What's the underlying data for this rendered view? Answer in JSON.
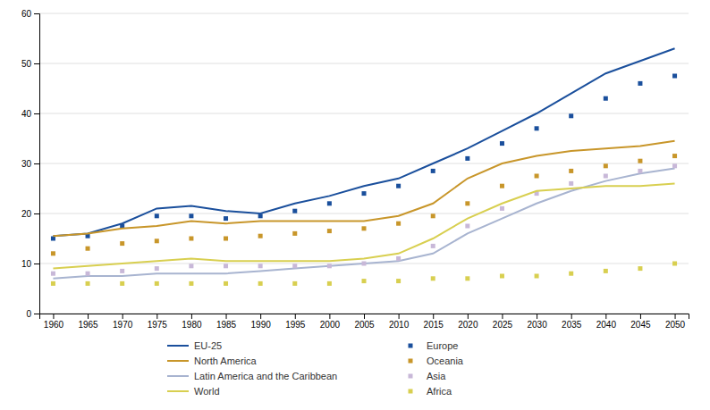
{
  "chart_data": {
    "type": "line",
    "x": [
      1960,
      1965,
      1970,
      1975,
      1980,
      1985,
      1990,
      1995,
      2000,
      2005,
      2010,
      2015,
      2020,
      2025,
      2030,
      2035,
      2040,
      2045,
      2050
    ],
    "series": [
      {
        "name": "EU-25",
        "color": "#1a4f9c",
        "line_style": "solid",
        "values": [
          15.5,
          16.0,
          18.0,
          21.0,
          21.5,
          20.5,
          20.0,
          22.0,
          23.5,
          25.5,
          27.0,
          30.0,
          33.0,
          36.5,
          40.0,
          44.0,
          48.0,
          50.5,
          53.0
        ]
      },
      {
        "name": "Europe",
        "color": "#1a4f9c",
        "marker": "square",
        "line_style": "none",
        "values": [
          15.0,
          15.5,
          17.5,
          19.5,
          19.5,
          19.0,
          19.5,
          20.5,
          22.0,
          24.0,
          25.5,
          28.5,
          31.0,
          34.0,
          37.0,
          39.5,
          43.0,
          46.0,
          47.5
        ]
      },
      {
        "name": "North America",
        "color": "#c8962a",
        "line_style": "solid",
        "values": [
          15.5,
          16.0,
          17.0,
          17.5,
          18.5,
          18.0,
          18.5,
          18.5,
          18.5,
          18.5,
          19.5,
          22.0,
          27.0,
          30.0,
          31.5,
          32.5,
          33.0,
          33.5,
          34.5
        ]
      },
      {
        "name": "Oceania",
        "color": "#c8962a",
        "marker": "square",
        "line_style": "none",
        "values": [
          12.0,
          13.0,
          14.0,
          14.5,
          15.0,
          15.0,
          15.5,
          16.0,
          16.5,
          17.0,
          18.0,
          19.5,
          22.0,
          25.5,
          27.5,
          28.5,
          29.5,
          30.5,
          31.5
        ]
      },
      {
        "name": "Latin America and the Caribbean",
        "color": "#a8b4d0",
        "line_style": "solid",
        "values": [
          7.0,
          7.5,
          7.5,
          8.0,
          8.0,
          8.0,
          8.5,
          9.0,
          9.5,
          10.0,
          10.5,
          12.0,
          16.0,
          19.0,
          22.0,
          24.5,
          26.5,
          28.0,
          29.0
        ]
      },
      {
        "name": "Asia",
        "color": "#c8b8d8",
        "marker": "square",
        "line_style": "none",
        "values": [
          8.0,
          8.0,
          8.5,
          9.0,
          9.5,
          9.5,
          9.5,
          9.5,
          9.5,
          10.0,
          11.0,
          13.5,
          17.5,
          21.0,
          24.0,
          26.0,
          27.5,
          28.5,
          29.5
        ]
      },
      {
        "name": "World",
        "color": "#d8cf50",
        "line_style": "solid",
        "values": [
          9.0,
          9.5,
          10.0,
          10.5,
          11.0,
          10.5,
          10.5,
          10.5,
          10.5,
          11.0,
          12.0,
          15.0,
          19.0,
          22.0,
          24.5,
          25.0,
          25.5,
          25.5,
          26.0
        ]
      },
      {
        "name": "Africa",
        "color": "#d8cf50",
        "marker": "square",
        "line_style": "none",
        "values": [
          6.0,
          6.0,
          6.0,
          6.0,
          6.0,
          6.0,
          6.0,
          6.0,
          6.0,
          6.5,
          6.5,
          7.0,
          7.0,
          7.5,
          7.5,
          8.0,
          8.5,
          9.0,
          10.0
        ]
      }
    ],
    "xlim": [
      1958,
      2052
    ],
    "xticks": [
      1960,
      1965,
      1970,
      1975,
      1980,
      1985,
      1990,
      1995,
      2000,
      2005,
      2010,
      2015,
      2020,
      2025,
      2030,
      2035,
      2040,
      2045,
      2050
    ],
    "ylim": [
      0,
      60
    ],
    "yticks": [
      0,
      10,
      20,
      30,
      40,
      50,
      60
    ],
    "grid": true,
    "legend": "bottom"
  }
}
